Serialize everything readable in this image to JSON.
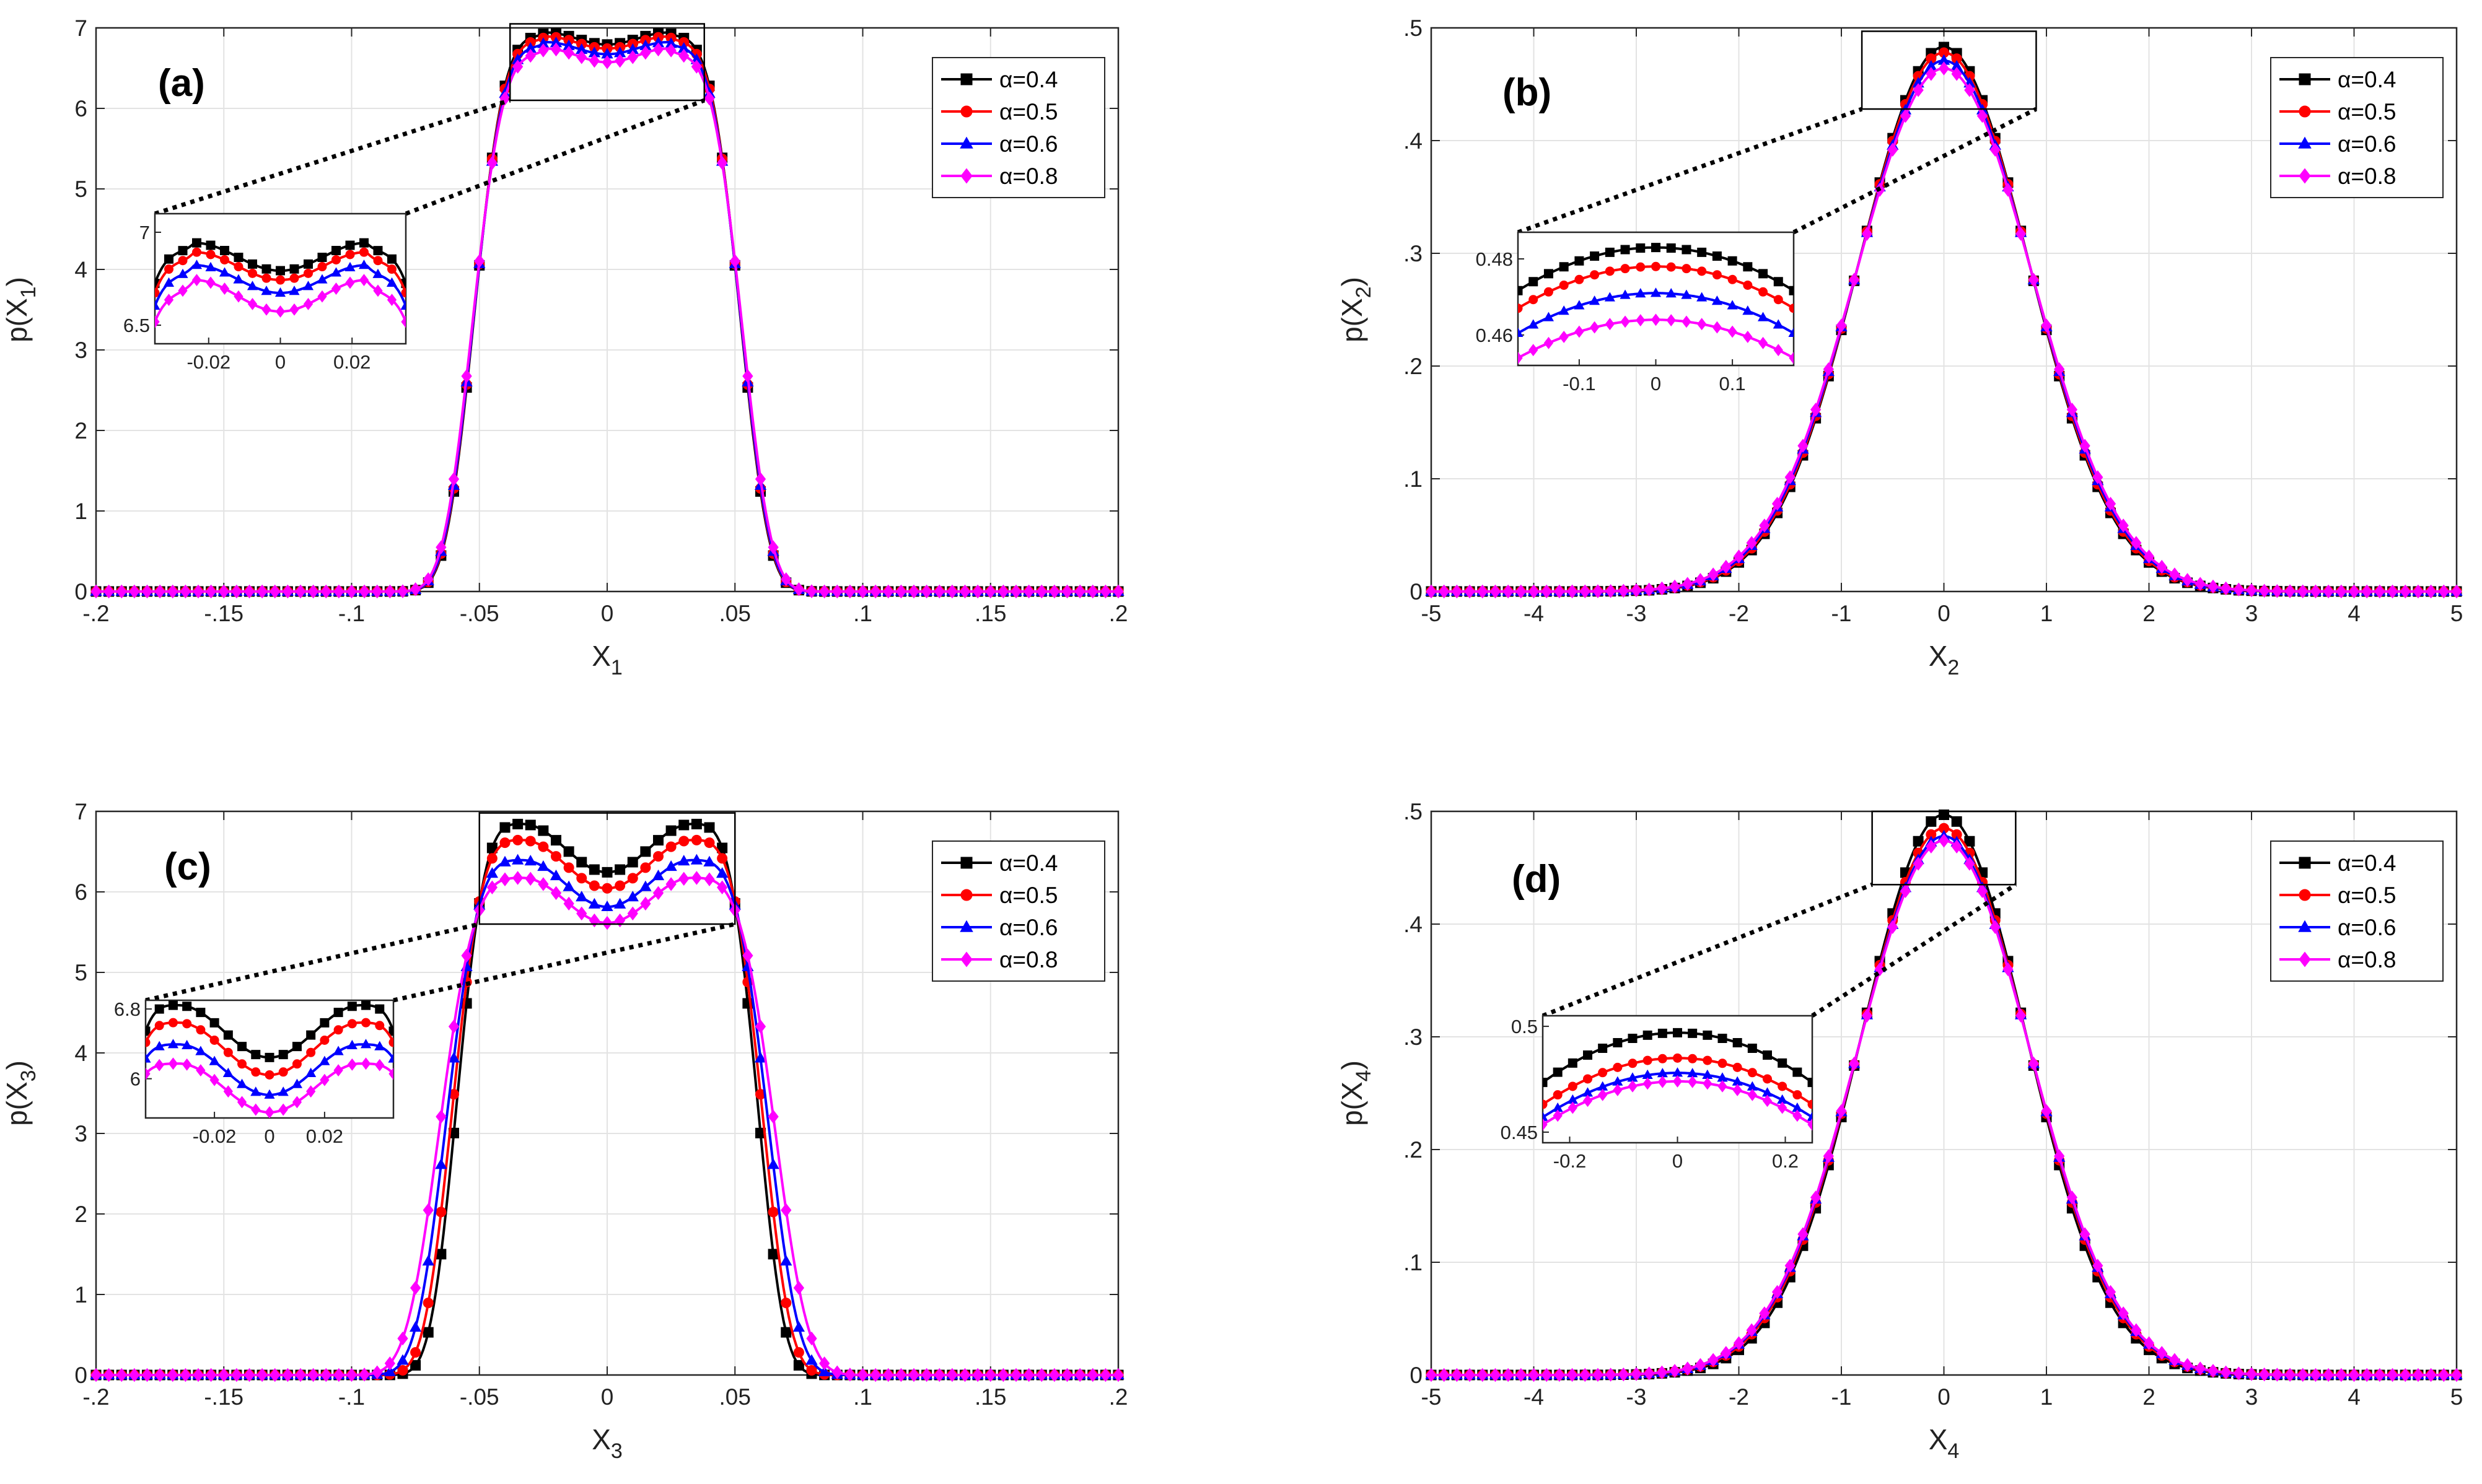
{
  "figure": {
    "legend_symbol": "α",
    "alphas": [
      "0.4",
      "0.5",
      "0.6",
      "0.8"
    ],
    "legend_labels": [
      "α=0.4",
      "α=0.5",
      "α=0.6",
      "α=0.8"
    ],
    "colors": [
      "#000000",
      "#ff0000",
      "#0000ff",
      "#ff00ff"
    ],
    "markers": [
      "square",
      "circle",
      "triangle",
      "diamond"
    ]
  },
  "chart_data": [
    {
      "type": "line",
      "panel_label": "(a)",
      "xlabel": "X",
      "xlabel_sub": "1",
      "ylabel_pre": "p(X",
      "ylabel_sub": "1",
      "ylabel_post": ")",
      "xlim": [
        -0.2,
        0.2
      ],
      "ylim": [
        0,
        7
      ],
      "xticks": [
        -0.2,
        -0.15,
        -0.1,
        -0.05,
        0,
        0.05,
        0.1,
        0.15,
        0.2
      ],
      "yticks": [
        0,
        1,
        2,
        3,
        4,
        5,
        6,
        7
      ],
      "grid": true,
      "legend_position": "top-right",
      "shape": "bimodal",
      "series": [
        {
          "name": "α=0.4",
          "peak": 6.95,
          "dip": 6.8,
          "peak_x": 0.024,
          "sigma": 0.031
        },
        {
          "name": "α=0.5",
          "peak": 6.9,
          "dip": 6.75,
          "peak_x": 0.024,
          "sigma": 0.0312
        },
        {
          "name": "α=0.6",
          "peak": 6.83,
          "dip": 6.68,
          "peak_x": 0.024,
          "sigma": 0.0314
        },
        {
          "name": "α=0.8",
          "peak": 6.75,
          "dip": 6.58,
          "peak_x": 0.024,
          "sigma": 0.0318
        }
      ],
      "inset": {
        "xlim": [
          -0.035,
          0.035
        ],
        "ylim": [
          6.4,
          7.1
        ],
        "xticks": [
          -0.02,
          0,
          0.02
        ],
        "yticks": [
          6.5,
          7
        ],
        "zoom_xlim": [
          -0.038,
          0.038
        ],
        "zoom_ylim": [
          6.1,
          7.05
        ]
      }
    },
    {
      "type": "line",
      "panel_label": "(b)",
      "xlabel": "X",
      "xlabel_sub": "2",
      "ylabel_pre": "p(X",
      "ylabel_sub": "2",
      "ylabel_post": ")",
      "xlim": [
        -5,
        5
      ],
      "ylim": [
        0,
        0.5
      ],
      "xticks": [
        -5,
        -4,
        -3,
        -2,
        -1,
        0,
        1,
        2,
        3,
        4,
        5
      ],
      "yticks": [
        0,
        0.1,
        0.2,
        0.3,
        0.4,
        0.5
      ],
      "grid": true,
      "legend_position": "top-right",
      "shape": "gaussian",
      "series": [
        {
          "name": "α=0.4",
          "peak": 0.483,
          "sigma": 0.826
        },
        {
          "name": "α=0.5",
          "peak": 0.478,
          "sigma": 0.835
        },
        {
          "name": "α=0.6",
          "peak": 0.471,
          "sigma": 0.847
        },
        {
          "name": "α=0.8",
          "peak": 0.464,
          "sigma": 0.86
        }
      ],
      "inset": {
        "xlim": [
          -0.18,
          0.18
        ],
        "ylim": [
          0.452,
          0.487
        ],
        "xticks": [
          -0.1,
          0,
          0.1
        ],
        "yticks": [
          0.46,
          0.48
        ],
        "zoom_xlim": [
          -0.8,
          0.9
        ],
        "zoom_ylim": [
          0.428,
          0.497
        ]
      }
    },
    {
      "type": "line",
      "panel_label": "(c)",
      "xlabel": "X",
      "xlabel_sub": "3",
      "ylabel_pre": "p(X",
      "ylabel_sub": "3",
      "ylabel_post": ")",
      "xlim": [
        -0.2,
        0.2
      ],
      "ylim": [
        0,
        7
      ],
      "xticks": [
        -0.2,
        -0.15,
        -0.1,
        -0.05,
        0,
        0.05,
        0.1,
        0.15,
        0.2
      ],
      "yticks": [
        0,
        1,
        2,
        3,
        4,
        5,
        6,
        7
      ],
      "grid": true,
      "legend_position": "top-right",
      "shape": "bimodal",
      "series": [
        {
          "name": "α=0.4",
          "peak": 6.85,
          "dip": 6.25,
          "peak_x": 0.033,
          "sigma": 0.0285
        },
        {
          "name": "α=0.5",
          "peak": 6.65,
          "dip": 6.05,
          "peak_x": 0.033,
          "sigma": 0.0305
        },
        {
          "name": "α=0.6",
          "peak": 6.4,
          "dip": 5.82,
          "peak_x": 0.033,
          "sigma": 0.033
        },
        {
          "name": "α=0.8",
          "peak": 6.18,
          "dip": 5.62,
          "peak_x": 0.033,
          "sigma": 0.036
        }
      ],
      "inset": {
        "xlim": [
          -0.045,
          0.045
        ],
        "ylim": [
          5.55,
          6.9
        ],
        "xticks": [
          -0.02,
          0,
          0.02
        ],
        "yticks": [
          6,
          6.8
        ],
        "zoom_xlim": [
          -0.05,
          0.05
        ],
        "zoom_ylim": [
          5.6,
          6.98
        ]
      }
    },
    {
      "type": "line",
      "panel_label": "(d)",
      "xlabel": "X",
      "xlabel_sub": "4",
      "ylabel_pre": "p(X",
      "ylabel_sub": "4",
      "ylabel_post": ")",
      "xlim": [
        -5,
        5
      ],
      "ylim": [
        0,
        0.5
      ],
      "xticks": [
        -5,
        -4,
        -3,
        -2,
        -1,
        0,
        1,
        2,
        3,
        4,
        5
      ],
      "yticks": [
        0,
        0.1,
        0.2,
        0.3,
        0.4,
        0.5
      ],
      "grid": true,
      "legend_position": "top-right",
      "shape": "gaussian",
      "series": [
        {
          "name": "α=0.4",
          "peak": 0.497,
          "sigma": 0.803
        },
        {
          "name": "α=0.5",
          "peak": 0.485,
          "sigma": 0.823
        },
        {
          "name": "α=0.6",
          "peak": 0.478,
          "sigma": 0.835
        },
        {
          "name": "α=0.8",
          "peak": 0.474,
          "sigma": 0.842
        }
      ],
      "inset": {
        "xlim": [
          -0.25,
          0.25
        ],
        "ylim": [
          0.445,
          0.505
        ],
        "xticks": [
          -0.2,
          0,
          0.2
        ],
        "yticks": [
          0.45,
          0.5
        ],
        "zoom_xlim": [
          -0.7,
          0.7
        ],
        "zoom_ylim": [
          0.435,
          0.5
        ]
      }
    }
  ]
}
